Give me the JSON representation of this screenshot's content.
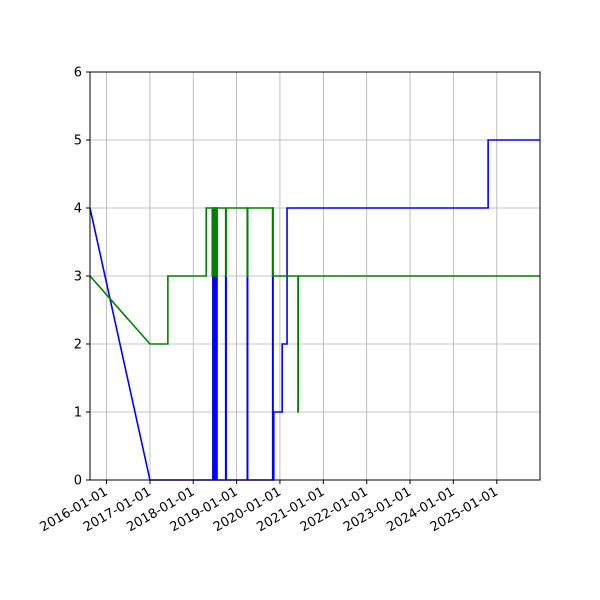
{
  "chart_data": {
    "type": "line",
    "title": "",
    "xlabel": "",
    "ylabel": "",
    "x_axis": "date",
    "xlim": [
      "2015-08-15",
      "2025-12-31"
    ],
    "ylim": [
      0,
      6
    ],
    "grid": true,
    "legend": "none",
    "x_ticks": [
      "2016-01-01",
      "2017-01-01",
      "2018-01-01",
      "2019-01-01",
      "2020-01-01",
      "2021-01-01",
      "2022-01-01",
      "2023-01-01",
      "2024-01-01",
      "2025-01-01"
    ],
    "y_ticks": [
      "0",
      "1",
      "2",
      "3",
      "4",
      "5",
      "6"
    ],
    "series": [
      {
        "color": "#0000ff",
        "step": "post",
        "points": [
          [
            "2015-08-15",
            4
          ],
          [
            "2017-01-01",
            0
          ],
          [
            "2018-06-15",
            4
          ],
          [
            "2018-06-20",
            0
          ],
          [
            "2018-06-25",
            4
          ],
          [
            "2018-06-30",
            0
          ],
          [
            "2018-07-05",
            4
          ],
          [
            "2018-07-10",
            0
          ],
          [
            "2018-07-15",
            4
          ],
          [
            "2018-07-20",
            0
          ],
          [
            "2018-10-01",
            3
          ],
          [
            "2018-10-05",
            0
          ],
          [
            "2019-04-01",
            4
          ],
          [
            "2019-04-04",
            0
          ],
          [
            "2019-11-01",
            4
          ],
          [
            "2019-11-04",
            0
          ],
          [
            "2019-11-10",
            1
          ],
          [
            "2020-01-20",
            2
          ],
          [
            "2020-03-01",
            4
          ],
          [
            "2020-06-01",
            4
          ],
          [
            "2024-10-20",
            5
          ],
          [
            "2025-12-31",
            5
          ]
        ]
      },
      {
        "color": "#008000",
        "step": "post",
        "points": [
          [
            "2015-08-15",
            3
          ],
          [
            "2017-01-01",
            2
          ],
          [
            "2017-06-01",
            3
          ],
          [
            "2018-04-20",
            4
          ],
          [
            "2018-06-10",
            3
          ],
          [
            "2018-06-15",
            4
          ],
          [
            "2018-06-22",
            3
          ],
          [
            "2018-07-01",
            4
          ],
          [
            "2018-07-08",
            3
          ],
          [
            "2018-07-15",
            4
          ],
          [
            "2018-10-01",
            3
          ],
          [
            "2018-10-05",
            4
          ],
          [
            "2019-04-01",
            3
          ],
          [
            "2019-04-04",
            4
          ],
          [
            "2019-11-01",
            3
          ],
          [
            "2019-11-04",
            3
          ],
          [
            "2020-06-01",
            1
          ],
          [
            "2020-06-03",
            3
          ],
          [
            "2025-12-31",
            3
          ]
        ]
      }
    ]
  }
}
